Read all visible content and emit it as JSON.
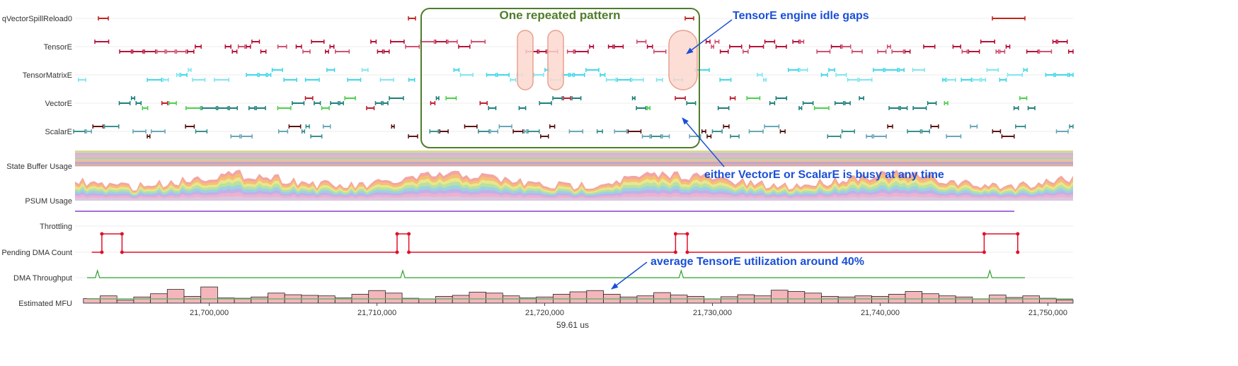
{
  "lanes": [
    {
      "id": "qvector",
      "label": "qVectorSpillReload0"
    },
    {
      "id": "tensore",
      "label": "TensorE"
    },
    {
      "id": "tensormatrix",
      "label": "TensorMatrixE"
    },
    {
      "id": "vectore",
      "label": "VectorE"
    },
    {
      "id": "scalare",
      "label": "ScalarE"
    },
    {
      "id": "sbuf",
      "label": "State Buffer Usage"
    },
    {
      "id": "psum",
      "label": "PSUM Usage"
    },
    {
      "id": "throttling",
      "label": "Throttling"
    },
    {
      "id": "pending",
      "label": "Pending DMA Count"
    },
    {
      "id": "dma",
      "label": "DMA Throughput"
    },
    {
      "id": "mfu",
      "label": "Estimated MFU"
    }
  ],
  "axis": {
    "ticks": [
      "21,700,000",
      "21,710,000",
      "21,720,000",
      "21,730,000",
      "21,740,000",
      "21,750,000"
    ],
    "tick_values": [
      21700000,
      21710000,
      21720000,
      21730000,
      21740000,
      21750000
    ],
    "xlabel": "59.61 us"
  },
  "annotations": {
    "pattern_box": "One repeated pattern",
    "idle_gaps": "TensorE engine idle gaps",
    "busy": "either VectorE or ScalarE is busy at any time",
    "utilization": "average TensorE utilization around 40%"
  },
  "colors": {
    "tensor": "#b5123a",
    "tensor_matrix": "#3fd8e8",
    "vector_teal": "#1a7f7a",
    "vector_red": "#c01b2c",
    "vector_green": "#4ad04a",
    "scalar_teal": "#3d8f8f",
    "scalar_brown": "#5a1414",
    "pending": "#e0102a",
    "dma": "#2ca02c",
    "mfu_fill": "#f4b6bb",
    "mfu_avg": "#6fb36f",
    "throttle": "#8a3fc7",
    "annotation_blue": "#1a4fd6",
    "annotation_green": "#4f7d2a",
    "highlight": "#fcd8cf"
  },
  "chart_data": {
    "type": "bar",
    "title": "",
    "ylabel": "Estimated MFU",
    "xlabel": "59.61 us",
    "xlim": [
      21692000,
      21751500
    ],
    "x_units": "ns",
    "bin_width": 1000,
    "x": [
      21693000,
      21694000,
      21695000,
      21696000,
      21697000,
      21698000,
      21699000,
      21700000,
      21701000,
      21702000,
      21703000,
      21704000,
      21705000,
      21706000,
      21707000,
      21708000,
      21709000,
      21710000,
      21711000,
      21712000,
      21713000,
      21714000,
      21715000,
      21716000,
      21717000,
      21718000,
      21719000,
      21720000,
      21721000,
      21722000,
      21723000,
      21724000,
      21725000,
      21726000,
      21727000,
      21728000,
      21729000,
      21730000,
      21731000,
      21732000,
      21733000,
      21734000,
      21735000,
      21736000,
      21737000,
      21738000,
      21739000,
      21740000,
      21741000,
      21742000,
      21743000,
      21744000,
      21745000,
      21746000,
      21747000,
      21748000,
      21749000,
      21750000,
      21751000
    ],
    "values": [
      0.28,
      0.45,
      0.18,
      0.38,
      0.58,
      0.85,
      0.42,
      1.0,
      0.32,
      0.3,
      0.38,
      0.62,
      0.52,
      0.48,
      0.45,
      0.32,
      0.55,
      0.78,
      0.62,
      0.3,
      0.25,
      0.42,
      0.48,
      0.68,
      0.62,
      0.45,
      0.32,
      0.38,
      0.55,
      0.7,
      0.78,
      0.55,
      0.38,
      0.45,
      0.65,
      0.5,
      0.42,
      0.25,
      0.4,
      0.52,
      0.45,
      0.8,
      0.72,
      0.62,
      0.42,
      0.38,
      0.45,
      0.42,
      0.55,
      0.72,
      0.58,
      0.45,
      0.38,
      0.25,
      0.5,
      0.35,
      0.45,
      0.3,
      0.2
    ],
    "ylim": [
      0,
      1.05
    ],
    "series": [
      {
        "name": "",
        "type": "step",
        "x": [
          21693000,
          21693600,
          21693600,
          21694800,
          21694800,
          21711200,
          21711200,
          21711900,
          21711900,
          21727800,
          21727800,
          21728500,
          21728500,
          21746200,
          21746200,
          21748200,
          21748200
        ],
        "values": [
          0,
          0,
          1,
          1,
          0,
          0,
          1,
          1,
          0,
          0,
          1,
          1,
          0,
          0,
          1,
          1,
          0
        ]
      }
    ]
  }
}
